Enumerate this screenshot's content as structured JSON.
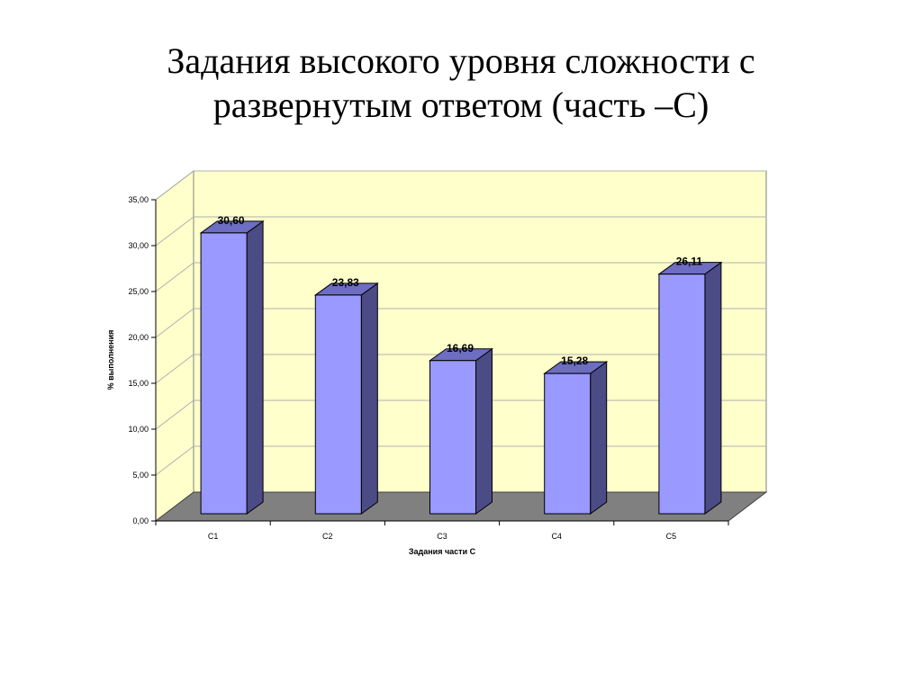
{
  "slide": {
    "title_line1": "Задания высокого уровня сложности с",
    "title_line2": "развернутым ответом (часть –С)"
  },
  "chart_data": {
    "type": "bar",
    "categories": [
      "С1",
      "С2",
      "С3",
      "С4",
      "С5"
    ],
    "values": [
      30.6,
      23.83,
      16.69,
      15.28,
      26.11
    ],
    "value_labels": [
      "30,60",
      "23,83",
      "16,69",
      "15,28",
      "26,11"
    ],
    "xlabel": "Задания части С",
    "ylabel": "% выполнения",
    "ylim": [
      0,
      35
    ],
    "yticks": [
      "0,00",
      "5,00",
      "10,00",
      "15,00",
      "20,00",
      "25,00",
      "30,00",
      "35,00"
    ],
    "grid": true,
    "legend": "none",
    "three_d": true,
    "colors": {
      "bar_front": "#9999ff",
      "bar_side": "#4b4b85",
      "bar_top": "#6d6dc2",
      "wall": "#ffffcc",
      "floor": "#808080"
    }
  }
}
